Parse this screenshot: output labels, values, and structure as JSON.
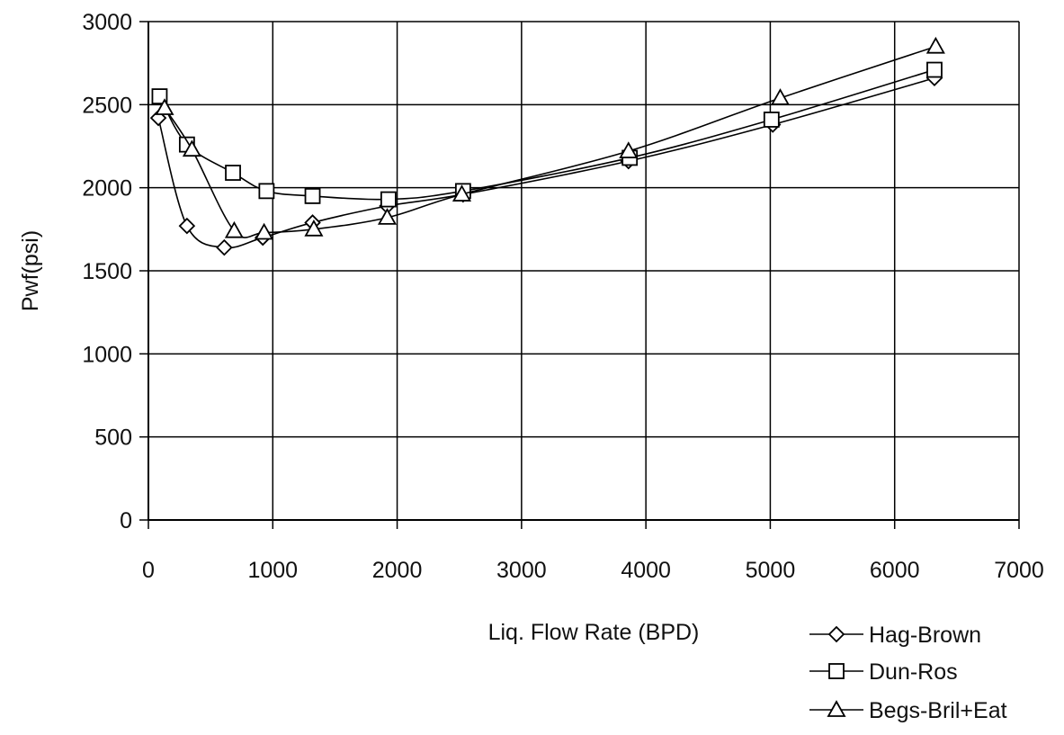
{
  "chart_data": {
    "type": "line",
    "xlabel": "Liq. Flow Rate (BPD)",
    "ylabel": "Pwf(psi)",
    "xlim": [
      0,
      7000
    ],
    "ylim": [
      0,
      3000
    ],
    "xticks": [
      "0",
      "1000",
      "2000",
      "3000",
      "4000",
      "5000",
      "6000",
      "7000"
    ],
    "yticks": [
      "0",
      "500",
      "1000",
      "1500",
      "2000",
      "2500",
      "3000"
    ],
    "grid": true,
    "legend_position": "bottom-right",
    "series": [
      {
        "name": "Hag-Brown",
        "marker": "diamond",
        "points": [
          [
            80,
            2420
          ],
          [
            310,
            1770
          ],
          [
            610,
            1640
          ],
          [
            920,
            1700
          ],
          [
            1320,
            1790
          ],
          [
            1920,
            1890
          ],
          [
            2530,
            1960
          ],
          [
            3860,
            2160
          ],
          [
            5020,
            2380
          ],
          [
            6320,
            2660
          ]
        ]
      },
      {
        "name": "Dun-Ros",
        "marker": "square",
        "points": [
          [
            90,
            2550
          ],
          [
            310,
            2260
          ],
          [
            680,
            2090
          ],
          [
            950,
            1980
          ],
          [
            1320,
            1950
          ],
          [
            1930,
            1930
          ],
          [
            2530,
            1980
          ],
          [
            3870,
            2180
          ],
          [
            5010,
            2410
          ],
          [
            6320,
            2710
          ]
        ]
      },
      {
        "name": "Begs-Bril+Eat",
        "marker": "triangle",
        "points": [
          [
            130,
            2480
          ],
          [
            350,
            2230
          ],
          [
            690,
            1740
          ],
          [
            930,
            1730
          ],
          [
            1330,
            1750
          ],
          [
            1920,
            1820
          ],
          [
            2520,
            1960
          ],
          [
            3860,
            2220
          ],
          [
            5080,
            2540
          ],
          [
            6330,
            2850
          ]
        ]
      }
    ]
  }
}
